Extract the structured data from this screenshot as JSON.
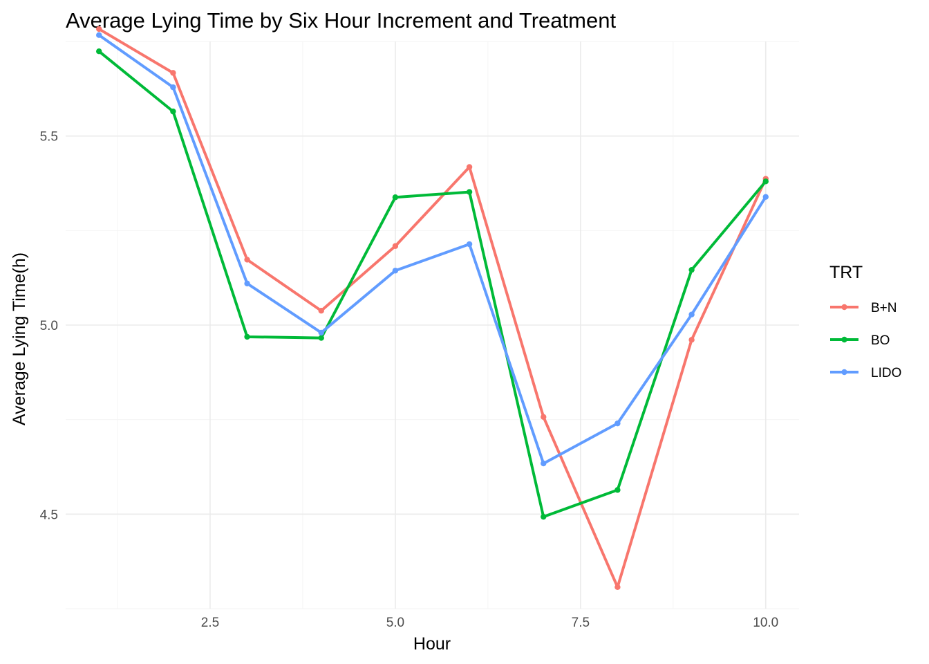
{
  "chart_data": {
    "type": "line",
    "title": "Average Lying Time by Six Hour Increment and Treatment",
    "xlabel": "Hour",
    "ylabel": "Average Lying Time(h)",
    "x": [
      1,
      2,
      3,
      4,
      5,
      6,
      7,
      8,
      9,
      10
    ],
    "xlim": [
      0.55,
      10.45
    ],
    "ylim": [
      4.25,
      5.75
    ],
    "x_ticks": [
      2.5,
      5.0,
      7.5,
      10.0
    ],
    "x_tick_labels": [
      "2.5",
      "5.0",
      "7.5",
      "10.0"
    ],
    "y_ticks": [
      4.5,
      5.0,
      5.5
    ],
    "y_tick_labels": [
      "4.5",
      "5.0",
      "5.5"
    ],
    "grid": true,
    "legend": {
      "title": "TRT",
      "position": "right"
    },
    "series": [
      {
        "name": "B+N",
        "color": "#F8766D",
        "values": [
          5.783,
          5.667,
          5.173,
          5.038,
          5.209,
          5.418,
          4.757,
          4.307,
          4.961,
          5.387
        ]
      },
      {
        "name": "BO",
        "color": "#00BA38",
        "values": [
          5.724,
          5.565,
          4.969,
          4.966,
          5.338,
          5.352,
          4.493,
          4.564,
          5.146,
          5.38
        ]
      },
      {
        "name": "LIDO",
        "color": "#619CFF",
        "values": [
          5.767,
          5.629,
          5.11,
          4.98,
          5.144,
          5.214,
          4.634,
          4.74,
          5.028,
          5.339
        ]
      }
    ]
  }
}
